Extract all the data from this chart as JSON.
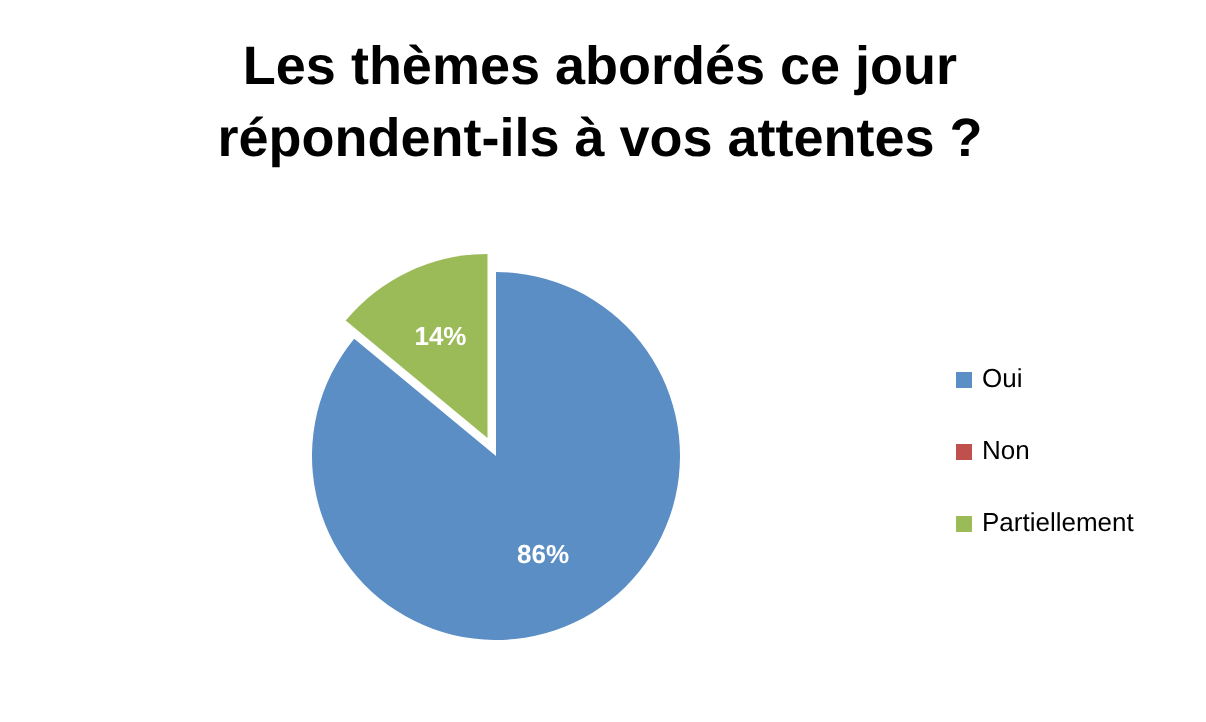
{
  "chart_data": {
    "type": "pie",
    "title": "Les thèmes abordés ce jour répondent-ils à vos attentes ?",
    "categories": [
      "Oui",
      "Non",
      "Partiellement"
    ],
    "values": [
      86,
      0,
      14
    ],
    "colors": [
      "#5b8ec5",
      "#c0504d",
      "#9bbb59"
    ],
    "value_labels": [
      "86%",
      null,
      "14%"
    ],
    "legend": "right"
  }
}
